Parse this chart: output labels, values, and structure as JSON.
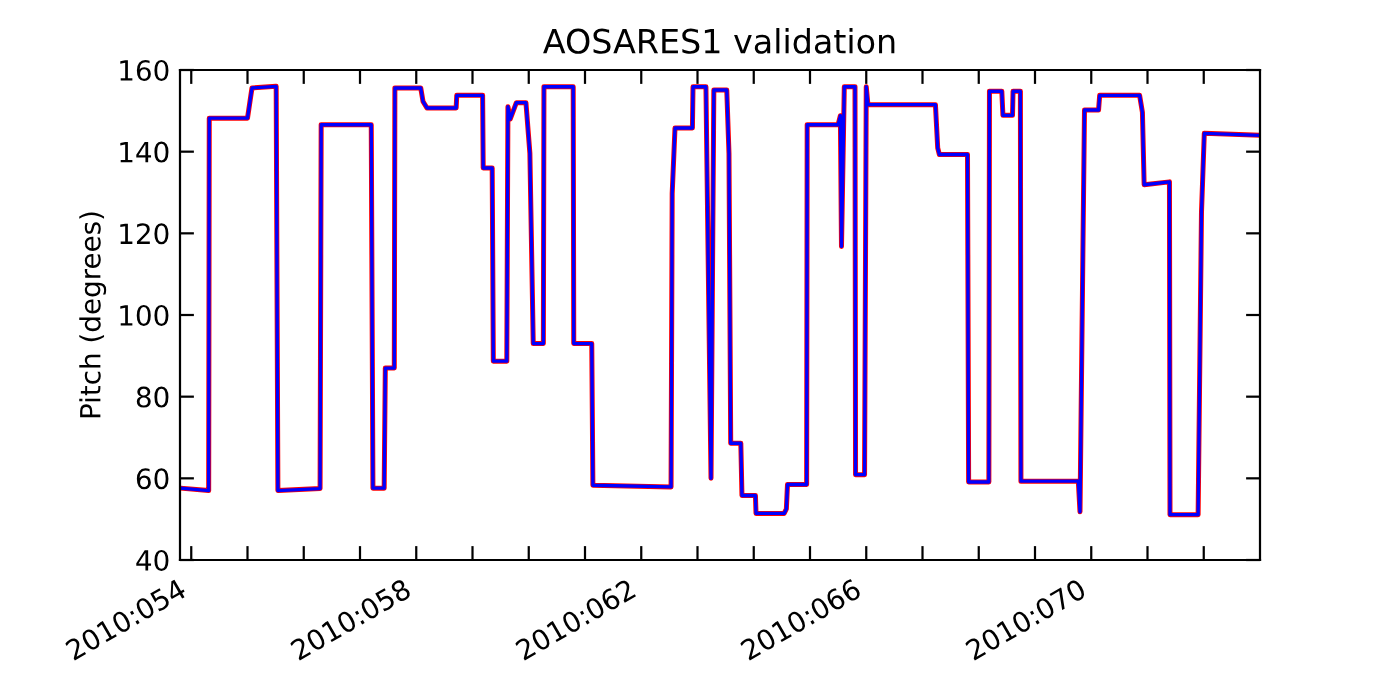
{
  "chart_data": {
    "type": "line",
    "title": "AOSARES1 validation",
    "ylabel": "Pitch (degrees)",
    "xlim": [
      "2010-02-22T19:12",
      "2010-03-14T00:00"
    ],
    "ylim": [
      40,
      160
    ],
    "yticks": [
      40,
      60,
      80,
      100,
      120,
      140,
      160
    ],
    "xticks": [
      {
        "value": "2010-02-23",
        "label": "2010:054"
      },
      {
        "value": "2010-02-24",
        "label": null
      },
      {
        "value": "2010-02-25",
        "label": null
      },
      {
        "value": "2010-02-26",
        "label": null
      },
      {
        "value": "2010-02-27",
        "label": "2010:058"
      },
      {
        "value": "2010-02-28",
        "label": null
      },
      {
        "value": "2010-03-01",
        "label": null
      },
      {
        "value": "2010-03-02",
        "label": null
      },
      {
        "value": "2010-03-03",
        "label": "2010:062"
      },
      {
        "value": "2010-03-04",
        "label": null
      },
      {
        "value": "2010-03-05",
        "label": null
      },
      {
        "value": "2010-03-06",
        "label": null
      },
      {
        "value": "2010-03-07",
        "label": "2010:066"
      },
      {
        "value": "2010-03-08",
        "label": null
      },
      {
        "value": "2010-03-09",
        "label": null
      },
      {
        "value": "2010-03-10",
        "label": null
      },
      {
        "value": "2010-03-11",
        "label": "2010:070"
      },
      {
        "value": "2010-03-12",
        "label": null
      },
      {
        "value": "2010-03-13",
        "label": null
      }
    ],
    "grid": false,
    "marker": "none",
    "line_style": "solid",
    "x": [
      "2010-02-22T19:26",
      "2010-02-23T07:26",
      "2010-02-23T07:41",
      "2010-02-24T00:00",
      "2010-02-24T01:55",
      "2010-02-24T12:14",
      "2010-02-24T12:58",
      "2010-02-25T06:58",
      "2010-02-25T07:26",
      "2010-02-26T04:48",
      "2010-02-26T05:31",
      "2010-02-26T10:19",
      "2010-02-26T10:48",
      "2010-02-26T14:38",
      "2010-02-26T14:53",
      "2010-02-27T01:55",
      "2010-02-27T02:53",
      "2010-02-27T04:34",
      "2010-02-27T17:02",
      "2010-02-27T17:17",
      "2010-02-28T04:19",
      "2010-02-28T04:34",
      "2010-02-28T08:24",
      "2010-02-28T08:53",
      "2010-02-28T14:38",
      "2010-02-28T15:07",
      "2010-02-28T16:05",
      "2010-02-28T18:43",
      "2010-02-28T22:48",
      "2010-03-01T00:29",
      "2010-03-01T01:55",
      "2010-03-01T06:14",
      "2010-03-01T06:29",
      "2010-03-01T18:58",
      "2010-03-01T19:12",
      "2010-03-02T02:53",
      "2010-03-02T03:22",
      "2010-03-03T12:43",
      "2010-03-03T13:12",
      "2010-03-03T14:24",
      "2010-03-03T21:50",
      "2010-03-03T22:05",
      "2010-03-04T03:36",
      "2010-03-04T05:46",
      "2010-03-04T06:58",
      "2010-03-04T12:29",
      "2010-03-04T13:26",
      "2010-03-04T14:10",
      "2010-03-04T18:29",
      "2010-03-04T18:58",
      "2010-03-05T00:43",
      "2010-03-05T00:58",
      "2010-03-05T12:58",
      "2010-03-05T13:55",
      "2010-03-05T14:24",
      "2010-03-05T22:34",
      "2010-03-05T22:48",
      "2010-03-06T12:00",
      "2010-03-06T12:58",
      "2010-03-06T13:26",
      "2010-03-06T14:38",
      "2010-03-06T19:12",
      "2010-03-06T19:26",
      "2010-03-06T23:17",
      "2010-03-07T00:00",
      "2010-03-07T00:43",
      "2010-03-08T05:31",
      "2010-03-08T06:29",
      "2010-03-08T07:12",
      "2010-03-08T19:12",
      "2010-03-08T19:41",
      "2010-03-09T04:19",
      "2010-03-09T04:34",
      "2010-03-09T09:50",
      "2010-03-09T10:19",
      "2010-03-09T14:24",
      "2010-03-09T14:38",
      "2010-03-09T17:46",
      "2010-03-09T18:00",
      "2010-03-10T18:29",
      "2010-03-10T19:12",
      "2010-03-10T21:07",
      "2010-03-11T03:07",
      "2010-03-11T03:36",
      "2010-03-11T20:38",
      "2010-03-11T21:50",
      "2010-03-11T22:34",
      "2010-03-12T09:22",
      "2010-03-12T09:36",
      "2010-03-12T21:36",
      "2010-03-12T23:02",
      "2010-03-13T00:14",
      "2010-03-14T00:00"
    ],
    "series": [
      {
        "color": "#ff0000",
        "values": [
          57.6,
          57,
          148.2,
          148.2,
          155.6,
          156,
          57,
          57.5,
          146.6,
          146.6,
          57.6,
          57.6,
          87,
          87,
          155.6,
          155.6,
          152.3,
          150.7,
          150.7,
          153.8,
          153.8,
          136,
          136,
          88.7,
          88.7,
          151,
          148,
          152,
          152,
          139.6,
          93,
          93,
          155.9,
          155.9,
          93,
          93,
          58.3,
          57.9,
          129.8,
          145.8,
          145.8,
          155.9,
          155.9,
          60,
          155.1,
          155.1,
          139.6,
          68.6,
          68.6,
          55.8,
          55.8,
          51.4,
          51.4,
          52.5,
          58.5,
          58.5,
          146.6,
          146.6,
          148.8,
          116.8,
          155.9,
          155.9,
          60.9,
          60.9,
          155.9,
          151.5,
          151.5,
          140.9,
          139.3,
          139.3,
          59.1,
          59.1,
          154.8,
          154.8,
          148.9,
          148.9,
          154.8,
          154.8,
          59.3,
          59.3,
          51.8,
          150.2,
          150.2,
          153.8,
          153.8,
          149.6,
          131.9,
          132.6,
          51.1,
          51.1,
          125.2,
          144.5,
          144
        ]
      },
      {
        "color": "#0000ff",
        "values": [
          57.6,
          57,
          148.2,
          148.2,
          155.6,
          156,
          57,
          57.5,
          146.6,
          146.6,
          57.6,
          57.6,
          87,
          87,
          155.6,
          155.6,
          152.3,
          150.7,
          150.7,
          153.8,
          153.8,
          136,
          136,
          88.7,
          88.7,
          151,
          148,
          152,
          152,
          139.6,
          93,
          93,
          155.9,
          155.9,
          93,
          93,
          58.3,
          57.9,
          129.8,
          145.8,
          145.8,
          155.9,
          155.9,
          60,
          155.1,
          155.1,
          139.6,
          68.6,
          68.6,
          55.8,
          55.8,
          51.4,
          51.4,
          52.5,
          58.5,
          58.5,
          146.6,
          146.6,
          148.8,
          116.8,
          155.9,
          155.9,
          60.9,
          60.9,
          155.9,
          151.5,
          151.5,
          140.9,
          139.3,
          139.3,
          59.1,
          59.1,
          154.8,
          154.8,
          148.9,
          148.9,
          154.8,
          154.8,
          59.3,
          59.3,
          51.8,
          150.2,
          150.2,
          153.8,
          153.8,
          149.6,
          131.9,
          132.6,
          51.1,
          51.1,
          125.2,
          144.5,
          144
        ]
      }
    ]
  }
}
